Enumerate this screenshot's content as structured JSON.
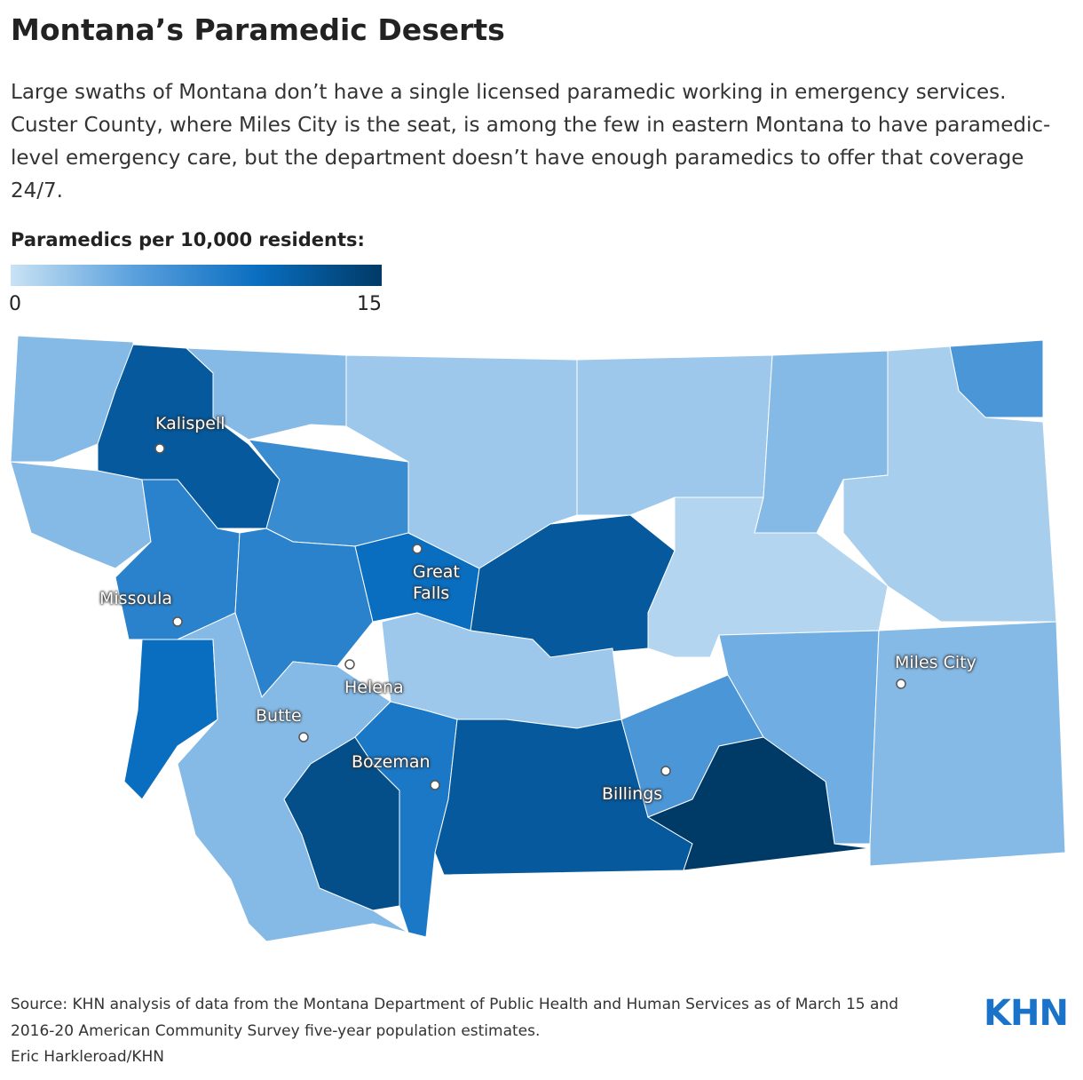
{
  "title": "Montana’s Paramedic Deserts",
  "subtitle": "Large swaths of Montana don’t have a single licensed paramedic working in emergency services. Custer County, where Miles City is the seat, is among the few in eastern Montana to have paramedic-level emergency care, but the department doesn’t have enough paramedics to offer that coverage 24/7.",
  "chart_data": {
    "type": "choropleth",
    "legend_title": "Paramedics per 10,000 residents:",
    "scale": {
      "min": 0,
      "max": 15,
      "colors": [
        "#c9e2f4",
        "#5aa0dd",
        "#0a6ec0",
        "#003a66"
      ]
    },
    "values": [
      3,
      12,
      3,
      3,
      8,
      10,
      7,
      8,
      10,
      2,
      2,
      3,
      6,
      1.5,
      12,
      1,
      2,
      4,
      3,
      3,
      13,
      9,
      12,
      6,
      15
    ],
    "cities": [
      {
        "name": "Kalispell"
      },
      {
        "name": "Missoula"
      },
      {
        "name": "Great Falls"
      },
      {
        "name": "Helena"
      },
      {
        "name": "Butte"
      },
      {
        "name": "Bozeman"
      },
      {
        "name": "Billings"
      },
      {
        "name": "Miles City"
      }
    ]
  },
  "footer": {
    "source": "Source: KHN analysis of data from the Montana Department of Public Health and Human Services as of March 15 and 2016-20 American Community Survey five-year population estimates.",
    "credit": "Eric Harkleroad/KHN",
    "logo": "KHN"
  }
}
